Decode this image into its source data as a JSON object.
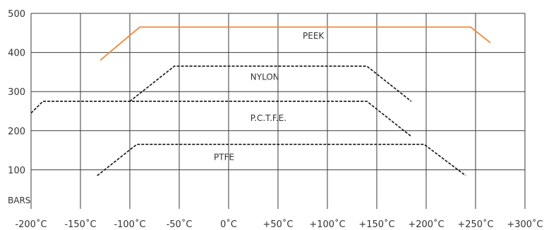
{
  "chart_data": {
    "type": "line",
    "y_unit_label": "BARS",
    "xlim": [
      -200,
      300
    ],
    "ylim": [
      0,
      500
    ],
    "x_ticks": [
      {
        "value": -200,
        "label": "-200˚C"
      },
      {
        "value": -150,
        "label": "-150˚C"
      },
      {
        "value": -100,
        "label": "-100˚C"
      },
      {
        "value": -50,
        "label": "-50˚C"
      },
      {
        "value": 0,
        "label": "0˚C"
      },
      {
        "value": 50,
        "label": "+50˚C"
      },
      {
        "value": 100,
        "label": "+100˚C"
      },
      {
        "value": 150,
        "label": "+150˚C"
      },
      {
        "value": 200,
        "label": "+200˚C"
      },
      {
        "value": 250,
        "label": "+250˚C"
      },
      {
        "value": 300,
        "label": "+300˚C"
      }
    ],
    "y_ticks": [
      {
        "value": 100,
        "label": "100"
      },
      {
        "value": 200,
        "label": "200"
      },
      {
        "value": 300,
        "label": "300"
      },
      {
        "value": 400,
        "label": "400"
      },
      {
        "value": 500,
        "label": "500"
      }
    ],
    "grid": true,
    "series": [
      {
        "name": "PEEK",
        "color": "#f0883a",
        "style": "solid",
        "label_at": [
          75,
          435
        ],
        "x": [
          -130,
          -90,
          245,
          265
        ],
        "y": [
          380,
          465,
          465,
          425
        ]
      },
      {
        "name": "NYLON",
        "color": "#111111",
        "style": "dashed",
        "label_at": [
          22,
          330
        ],
        "x": [
          -100,
          -55,
          140,
          185
        ],
        "y": [
          275,
          365,
          365,
          275
        ]
      },
      {
        "name": "P.C.T.F.E.",
        "color": "#111111",
        "style": "dashed",
        "label_at": [
          22,
          225
        ],
        "x": [
          -200,
          -188,
          140,
          185
        ],
        "y": [
          245,
          275,
          275,
          185
        ]
      },
      {
        "name": "PTFE",
        "color": "#111111",
        "style": "dashed",
        "label_at": [
          -15,
          125
        ],
        "x": [
          -133,
          -93,
          198,
          240
        ],
        "y": [
          85,
          165,
          165,
          85
        ]
      }
    ]
  }
}
